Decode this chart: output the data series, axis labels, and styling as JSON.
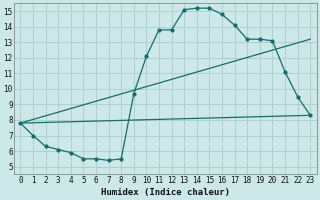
{
  "background_color": "#cce8e8",
  "grid_color": "#aed0d0",
  "line_color": "#1a6b6b",
  "xlabel": "Humidex (Indice chaleur)",
  "xlim": [
    -0.5,
    23.5
  ],
  "ylim": [
    4.5,
    15.5
  ],
  "xticks": [
    0,
    1,
    2,
    3,
    4,
    5,
    6,
    7,
    8,
    9,
    10,
    11,
    12,
    13,
    14,
    15,
    16,
    17,
    18,
    19,
    20,
    21,
    22,
    23
  ],
  "yticks": [
    5,
    6,
    7,
    8,
    9,
    10,
    11,
    12,
    13,
    14,
    15
  ],
  "curve1_x": [
    0,
    1,
    2,
    3,
    4,
    5,
    6,
    7,
    8,
    9,
    10,
    11,
    12,
    13,
    14,
    15,
    16,
    17,
    18,
    19,
    20,
    21,
    22,
    23
  ],
  "curve1_y": [
    7.8,
    7.0,
    6.3,
    6.1,
    5.9,
    5.5,
    5.5,
    5.4,
    5.5,
    9.7,
    12.1,
    13.8,
    13.8,
    15.1,
    15.2,
    15.2,
    14.8,
    14.1,
    13.2,
    13.2,
    13.1,
    11.1,
    9.5,
    8.3
  ],
  "line1_x": [
    0,
    23
  ],
  "line1_y": [
    7.8,
    8.3
  ],
  "line2_x": [
    0,
    23
  ],
  "line2_y": [
    7.8,
    13.2
  ],
  "marker_size": 2.0,
  "line_width": 0.9,
  "xlabel_fontsize": 6.5,
  "tick_fontsize": 5.5
}
